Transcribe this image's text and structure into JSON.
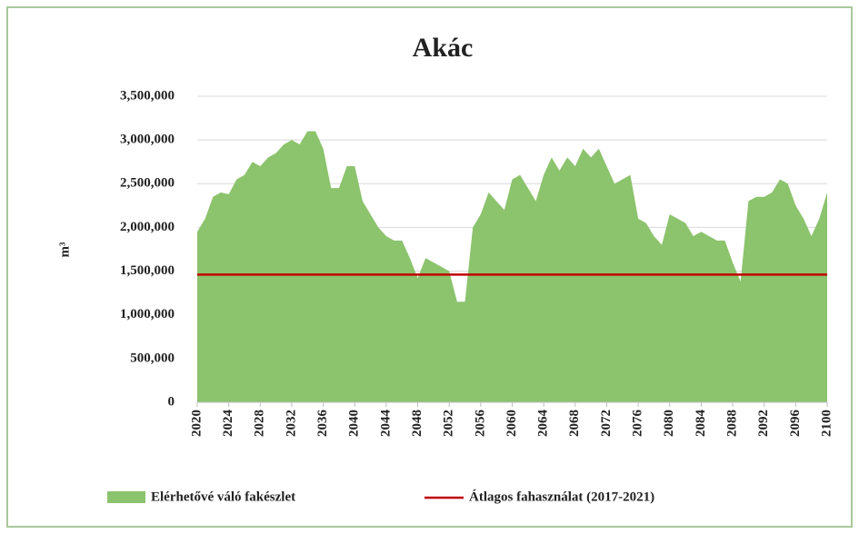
{
  "chart_data": {
    "type": "area",
    "title": "Akác",
    "ylabel": "m³",
    "x": [
      2020,
      2021,
      2022,
      2023,
      2024,
      2025,
      2026,
      2027,
      2028,
      2029,
      2030,
      2031,
      2032,
      2033,
      2034,
      2035,
      2036,
      2037,
      2038,
      2039,
      2040,
      2041,
      2042,
      2043,
      2044,
      2045,
      2046,
      2047,
      2048,
      2049,
      2050,
      2051,
      2052,
      2053,
      2054,
      2055,
      2056,
      2057,
      2058,
      2059,
      2060,
      2061,
      2062,
      2063,
      2064,
      2065,
      2066,
      2067,
      2068,
      2069,
      2070,
      2071,
      2072,
      2073,
      2074,
      2075,
      2076,
      2077,
      2078,
      2079,
      2080,
      2081,
      2082,
      2083,
      2084,
      2085,
      2086,
      2087,
      2088,
      2089,
      2090,
      2091,
      2092,
      2093,
      2094,
      2095,
      2096,
      2097,
      2098,
      2099,
      2100
    ],
    "series": [
      {
        "name": "Elérhetővé váló fakészlet",
        "color": "#8cc36d",
        "values": [
          1950000,
          2100000,
          2350000,
          2400000,
          2380000,
          2550000,
          2600000,
          2750000,
          2700000,
          2800000,
          2850000,
          2950000,
          3000000,
          2950000,
          3100000,
          3100000,
          2900000,
          2450000,
          2450000,
          2700000,
          2700000,
          2300000,
          2150000,
          2000000,
          1900000,
          1850000,
          1850000,
          1650000,
          1420000,
          1650000,
          1600000,
          1550000,
          1500000,
          1150000,
          1150000,
          2000000,
          2150000,
          2400000,
          2300000,
          2200000,
          2550000,
          2600000,
          2450000,
          2300000,
          2600000,
          2800000,
          2650000,
          2800000,
          2700000,
          2900000,
          2800000,
          2900000,
          2700000,
          2500000,
          2550000,
          2600000,
          2100000,
          2050000,
          1900000,
          1800000,
          2150000,
          2100000,
          2050000,
          1900000,
          1950000,
          1900000,
          1850000,
          1850000,
          1600000,
          1380000,
          2300000,
          2350000,
          2350000,
          2400000,
          2550000,
          2500000,
          2250000,
          2100000,
          1900000,
          2100000,
          2400000
        ]
      }
    ],
    "reference_line": {
      "name": "Átlagos fahasználat (2017-2021)",
      "color": "#c00000",
      "value": 1460000
    },
    "xlim": [
      2020,
      2100
    ],
    "xticks": [
      2020,
      2024,
      2028,
      2032,
      2036,
      2040,
      2044,
      2048,
      2052,
      2056,
      2060,
      2064,
      2068,
      2072,
      2076,
      2080,
      2084,
      2088,
      2092,
      2096,
      2100
    ],
    "ylim": [
      0,
      3500000
    ],
    "yticks": [
      0,
      {
        "value": 500000,
        "label": "500,000"
      },
      {
        "value": 1000000,
        "label": "1,000,000"
      },
      {
        "value": 1500000,
        "label": "1,500,000"
      },
      {
        "value": 2000000,
        "label": "2,000,000"
      },
      {
        "value": 2500000,
        "label": "2,500,000"
      },
      {
        "value": 3000000,
        "label": "3,000,000"
      },
      {
        "value": 3500000,
        "label": "3,500,000"
      }
    ],
    "grid": true,
    "legend": "bottom"
  }
}
